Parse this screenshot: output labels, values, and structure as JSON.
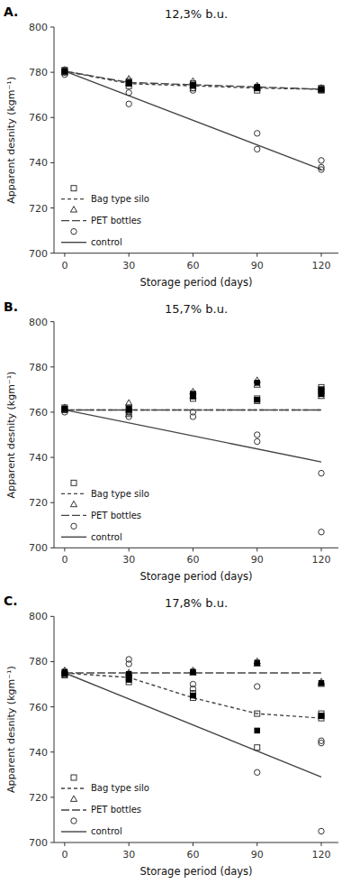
{
  "chart_data": [
    {
      "type": "scatter",
      "title": "12,3% b.u.",
      "annotations": [
        "A."
      ],
      "x_label": "Storage period (days)",
      "y_label": "Apparent desnity (kgm⁻¹)",
      "xlim": [
        -5,
        128
      ],
      "xticks": [
        0,
        30,
        60,
        90,
        120
      ],
      "ylim": [
        700,
        800
      ],
      "yticks": [
        700,
        720,
        740,
        760,
        780,
        800
      ],
      "grid": false,
      "legend": "lower left",
      "series": [
        {
          "type": "scatter",
          "marker": "open-square",
          "color": "#333333",
          "x": [
            0,
            0,
            30,
            30,
            60,
            60,
            90,
            90,
            120,
            120
          ],
          "values": [
            781,
            780,
            776,
            774,
            775,
            773,
            773,
            772,
            773,
            772
          ]
        },
        {
          "type": "line",
          "name": "Bag type silo",
          "line_style": "dashed",
          "color": "#444444",
          "x": [
            0,
            30,
            60,
            90,
            120
          ],
          "values": [
            780.5,
            775.0,
            774.0,
            773.0,
            772.5
          ]
        },
        {
          "type": "scatter",
          "marker": "open-triangle",
          "color": "#333333",
          "x": [
            0,
            0,
            30,
            30,
            60,
            60,
            90,
            90,
            120,
            120
          ],
          "values": [
            781,
            780,
            777,
            775,
            776,
            774,
            774,
            773,
            773,
            772
          ]
        },
        {
          "type": "line",
          "name": "PET bottles",
          "line_style": "long-dashed",
          "color": "#444444",
          "x": [
            0,
            30,
            60,
            90,
            120
          ],
          "values": [
            780.5,
            775.5,
            774.5,
            773.5,
            772.5
          ]
        },
        {
          "type": "scatter",
          "marker": "open-circle",
          "color": "#333333",
          "x": [
            0,
            0,
            30,
            30,
            60,
            60,
            90,
            90,
            120,
            120,
            120
          ],
          "values": [
            780,
            779,
            771,
            766,
            773,
            772,
            753,
            746,
            741,
            738,
            737
          ]
        },
        {
          "type": "line",
          "name": "control",
          "line_style": "solid",
          "color": "#444444",
          "x": [
            0,
            120
          ],
          "values": [
            780.5,
            737.0
          ]
        },
        {
          "type": "scatter",
          "marker": "filled-square",
          "color": "#000000",
          "x": [
            0,
            30,
            60,
            90,
            120
          ],
          "values": [
            780.5,
            775.0,
            774.0,
            773.0,
            772.5
          ]
        },
        {
          "type": "scatter",
          "marker": "filled-square",
          "color": "#000000",
          "x": [
            0,
            30,
            60,
            90,
            120
          ],
          "values": [
            780.5,
            775.5,
            774.5,
            773.5,
            772.5
          ]
        }
      ]
    },
    {
      "type": "scatter",
      "title": "15,7% b.u.",
      "annotations": [
        "B."
      ],
      "x_label": "Storage period (days)",
      "y_label": "Apparent desnity (kgm⁻¹)",
      "xlim": [
        -5,
        128
      ],
      "xticks": [
        0,
        30,
        60,
        90,
        120
      ],
      "ylim": [
        700,
        800
      ],
      "yticks": [
        700,
        720,
        740,
        760,
        780,
        800
      ],
      "grid": false,
      "legend": "lower left",
      "series": [
        {
          "type": "scatter",
          "marker": "open-square",
          "color": "#333333",
          "x": [
            0,
            0,
            30,
            30,
            60,
            60,
            90,
            90,
            120,
            120,
            120
          ],
          "values": [
            762,
            761,
            762,
            760,
            768,
            766,
            766,
            765,
            771,
            770,
            769
          ]
        },
        {
          "type": "line",
          "name": "Bag type silo",
          "line_style": "dashed",
          "color": "#444444",
          "x": [
            0,
            30,
            60,
            90,
            120
          ],
          "values": [
            761,
            761,
            761,
            761,
            761
          ]
        },
        {
          "type": "scatter",
          "marker": "open-triangle",
          "color": "#333333",
          "x": [
            0,
            0,
            30,
            30,
            60,
            60,
            90,
            90,
            120,
            120,
            120
          ],
          "values": [
            762,
            761,
            764,
            759,
            769,
            767,
            774,
            772,
            769,
            768,
            767
          ]
        },
        {
          "type": "line",
          "name": "PET bottles",
          "line_style": "long-dashed",
          "color": "#444444",
          "x": [
            0,
            30,
            60,
            90,
            120
          ],
          "values": [
            761,
            761,
            761,
            761,
            761
          ]
        },
        {
          "type": "scatter",
          "marker": "open-circle",
          "color": "#333333",
          "x": [
            0,
            0,
            30,
            30,
            60,
            60,
            90,
            90,
            120,
            120
          ],
          "values": [
            761,
            760,
            760,
            758,
            760,
            758,
            750,
            747,
            733,
            707
          ]
        },
        {
          "type": "line",
          "name": "control",
          "line_style": "solid",
          "color": "#444444",
          "x": [
            0,
            120
          ],
          "values": [
            761,
            738
          ]
        },
        {
          "type": "scatter",
          "marker": "filled-square",
          "color": "#000000",
          "x": [
            0,
            30,
            60,
            90,
            120
          ],
          "values": [
            761.5,
            761.0,
            767.0,
            765.5,
            770.0
          ]
        },
        {
          "type": "scatter",
          "marker": "filled-square",
          "color": "#000000",
          "x": [
            0,
            30,
            60,
            90,
            120
          ],
          "values": [
            761.5,
            761.5,
            768.0,
            773.0,
            768.0
          ]
        }
      ]
    },
    {
      "type": "scatter",
      "title": "17,8% b.u.",
      "annotations": [
        "C."
      ],
      "x_label": "Storage period (days)",
      "y_label": "Apparent desnity (kgm⁻¹)",
      "xlim": [
        -5,
        128
      ],
      "xticks": [
        0,
        30,
        60,
        90,
        120
      ],
      "ylim": [
        700,
        800
      ],
      "yticks": [
        700,
        720,
        740,
        760,
        780,
        800
      ],
      "grid": false,
      "legend": "lower left",
      "series": [
        {
          "type": "scatter",
          "marker": "open-square",
          "color": "#333333",
          "x": [
            0,
            0,
            30,
            30,
            60,
            60,
            90,
            90,
            120,
            120,
            120
          ],
          "values": [
            775,
            774,
            773,
            771,
            766,
            764,
            757,
            742,
            757,
            756,
            755
          ]
        },
        {
          "type": "line",
          "name": "Bag type silo",
          "line_style": "dashed",
          "color": "#444444",
          "x": [
            0,
            30,
            60,
            90,
            120
          ],
          "values": [
            775,
            773,
            764,
            757,
            755
          ]
        },
        {
          "type": "scatter",
          "marker": "open-triangle",
          "color": "#333333",
          "x": [
            0,
            0,
            30,
            30,
            60,
            60,
            90,
            90,
            120,
            120
          ],
          "values": [
            776,
            775,
            775,
            774,
            776,
            775,
            780,
            779,
            771,
            770
          ]
        },
        {
          "type": "line",
          "name": "PET bottles",
          "line_style": "long-dashed",
          "color": "#444444",
          "x": [
            0,
            30,
            60,
            90,
            120
          ],
          "values": [
            775,
            775,
            775,
            775,
            775
          ]
        },
        {
          "type": "scatter",
          "marker": "open-circle",
          "color": "#333333",
          "x": [
            0,
            0,
            30,
            30,
            60,
            60,
            90,
            90,
            120,
            120,
            120
          ],
          "values": [
            775,
            774,
            781,
            779,
            770,
            768,
            769,
            731,
            745,
            744,
            705
          ]
        },
        {
          "type": "line",
          "name": "control",
          "line_style": "solid",
          "color": "#444444",
          "x": [
            0,
            120
          ],
          "values": [
            775,
            729
          ]
        },
        {
          "type": "scatter",
          "marker": "filled-square",
          "color": "#000000",
          "x": [
            0,
            30,
            60,
            90,
            120
          ],
          "values": [
            774.5,
            772.0,
            765.0,
            749.5,
            756.0
          ]
        },
        {
          "type": "scatter",
          "marker": "filled-square",
          "color": "#000000",
          "x": [
            0,
            30,
            60,
            90,
            120
          ],
          "values": [
            775.5,
            774.5,
            775.5,
            779.5,
            770.5
          ]
        }
      ]
    }
  ]
}
